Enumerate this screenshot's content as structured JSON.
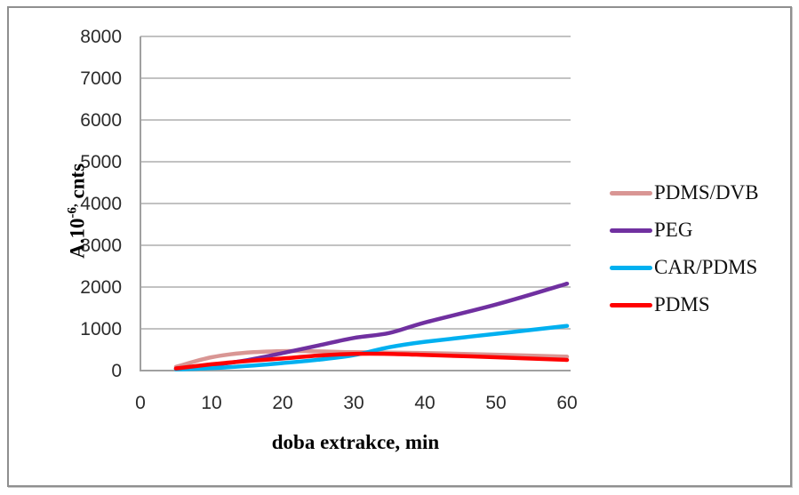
{
  "chart_data": {
    "type": "line",
    "title": "",
    "xlabel": "doba extrakce, min",
    "ylabel": {
      "base": "A.10",
      "sup": "-6,",
      "rest": " cnts"
    },
    "xlim": [
      0,
      64
    ],
    "ylim": [
      0,
      8000
    ],
    "x_ticks": [
      0,
      10,
      20,
      30,
      40,
      50,
      60
    ],
    "y_ticks": [
      0,
      1000,
      2000,
      3000,
      4000,
      5000,
      6000,
      7000,
      8000
    ],
    "grid": "horizontal-only",
    "legend_position": "right-outside",
    "axis_color": "#a0a0a0",
    "gridline_color": "#aeaeae",
    "line_width": 4.5,
    "series": [
      {
        "name": "PDMS/DVB",
        "color": "#d99694",
        "points": [
          [
            5,
            90
          ],
          [
            10,
            320
          ],
          [
            15,
            430
          ],
          [
            20,
            465
          ],
          [
            25,
            460
          ],
          [
            30,
            440
          ],
          [
            40,
            420
          ],
          [
            50,
            380
          ],
          [
            60,
            335
          ]
        ]
      },
      {
        "name": "PEG",
        "color": "#7030a0",
        "points": [
          [
            5,
            50
          ],
          [
            10,
            130
          ],
          [
            15,
            250
          ],
          [
            20,
            420
          ],
          [
            25,
            600
          ],
          [
            30,
            780
          ],
          [
            35,
            900
          ],
          [
            40,
            1150
          ],
          [
            50,
            1580
          ],
          [
            60,
            2080
          ]
        ]
      },
      {
        "name": "CAR/PDMS",
        "color": "#00b0f0",
        "points": [
          [
            5,
            30
          ],
          [
            10,
            60
          ],
          [
            15,
            110
          ],
          [
            20,
            180
          ],
          [
            25,
            260
          ],
          [
            30,
            370
          ],
          [
            35,
            560
          ],
          [
            40,
            690
          ],
          [
            50,
            880
          ],
          [
            60,
            1070
          ]
        ]
      },
      {
        "name": "PDMS",
        "color": "#ff0000",
        "points": [
          [
            5,
            50
          ],
          [
            10,
            150
          ],
          [
            15,
            230
          ],
          [
            20,
            290
          ],
          [
            25,
            360
          ],
          [
            30,
            400
          ],
          [
            35,
            400
          ],
          [
            40,
            375
          ],
          [
            50,
            320
          ],
          [
            60,
            255
          ]
        ]
      }
    ]
  }
}
